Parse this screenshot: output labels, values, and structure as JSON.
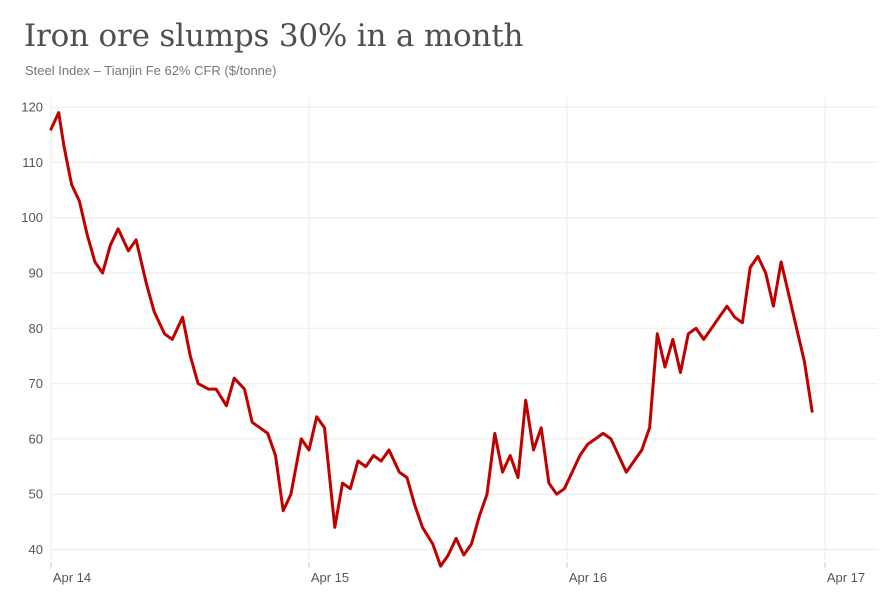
{
  "title": "Iron ore slumps 30% in a month",
  "subtitle": "Steel Index – Tianjin Fe 62% CFR ($/tonne)",
  "chart_data": {
    "type": "line",
    "title": "Iron ore slumps 30% in a month",
    "subtitle": "Steel Index – Tianjin Fe 62% CFR ($/tonne)",
    "xlabel": "",
    "ylabel": "",
    "x_ticks": [
      "Apr 14",
      "Apr 15",
      "Apr 16",
      "Apr 17"
    ],
    "y_ticks": [
      40,
      50,
      60,
      70,
      80,
      90,
      100,
      110,
      120
    ],
    "xlim": [
      2014.25,
      2017.3
    ],
    "ylim": [
      37,
      121
    ],
    "grid": true,
    "series": [
      {
        "color": "#c00000",
        "x": [
          2014.25,
          2014.28,
          2014.3,
          2014.33,
          2014.36,
          2014.39,
          2014.42,
          2014.45,
          2014.48,
          2014.51,
          2014.55,
          2014.58,
          2014.62,
          2014.65,
          2014.69,
          2014.72,
          2014.76,
          2014.79,
          2014.82,
          2014.86,
          2014.89,
          2014.93,
          2014.96,
          2015.0,
          2015.03,
          2015.06,
          2015.09,
          2015.12,
          2015.15,
          2015.18,
          2015.22,
          2015.25,
          2015.28,
          2015.31,
          2015.35,
          2015.38,
          2015.41,
          2015.44,
          2015.47,
          2015.5,
          2015.53,
          2015.56,
          2015.6,
          2015.63,
          2015.66,
          2015.69,
          2015.73,
          2015.76,
          2015.79,
          2015.82,
          2015.85,
          2015.88,
          2015.91,
          2015.94,
          2015.97,
          2016.0,
          2016.03,
          2016.06,
          2016.09,
          2016.12,
          2016.15,
          2016.18,
          2016.21,
          2016.24,
          2016.27,
          2016.3,
          2016.33,
          2016.36,
          2016.39,
          2016.42,
          2016.45,
          2016.48,
          2016.51,
          2016.54,
          2016.57,
          2016.6,
          2016.63,
          2016.66,
          2016.69,
          2016.72,
          2016.75,
          2016.78,
          2016.81,
          2016.84,
          2016.87,
          2016.9,
          2016.93,
          2016.96,
          2016.99,
          2017.02,
          2017.05,
          2017.08,
          2017.11,
          2017.14,
          2017.17,
          2017.2
        ],
        "y": [
          116,
          119,
          113,
          106,
          103,
          97,
          92,
          90,
          95,
          98,
          94,
          96,
          88,
          83,
          79,
          78,
          82,
          75,
          70,
          69,
          69,
          66,
          71,
          69,
          63,
          62,
          61,
          57,
          47,
          50,
          60,
          58,
          64,
          62,
          44,
          52,
          51,
          56,
          55,
          57,
          56,
          58,
          54,
          53,
          48,
          44,
          41,
          37,
          39,
          42,
          39,
          41,
          46,
          50,
          61,
          54,
          57,
          53,
          67,
          58,
          62,
          52,
          50,
          51,
          54,
          57,
          59,
          60,
          61,
          60,
          57,
          54,
          56,
          58,
          62,
          79,
          73,
          78,
          72,
          79,
          80,
          78,
          80,
          82,
          84,
          82,
          81,
          91,
          93,
          90,
          84,
          92,
          86,
          80,
          74,
          65
        ]
      }
    ]
  }
}
